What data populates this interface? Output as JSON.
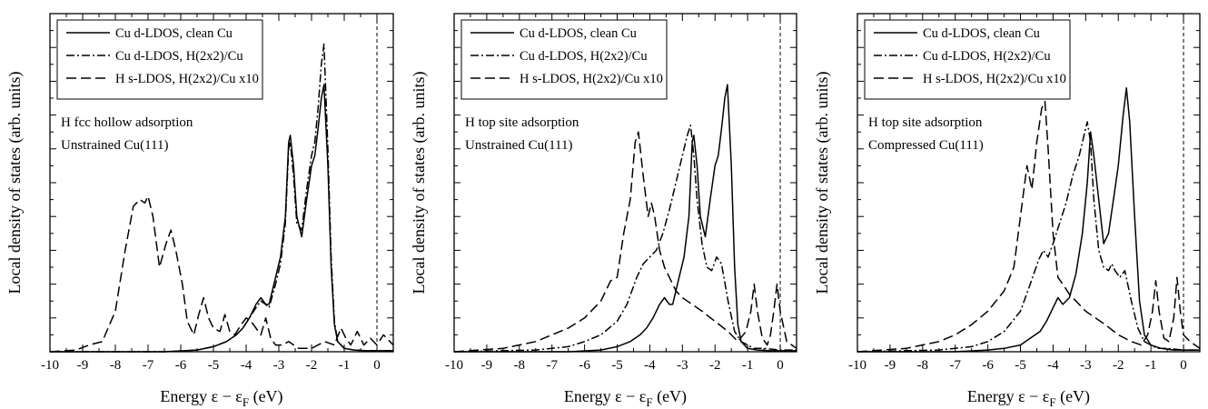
{
  "chart_data": [
    {
      "type": "line",
      "ylabel": "Local density of states (arb. units)",
      "xlabel_main": "Energy  ε − ε",
      "xlabel_sub": "F",
      "xlabel_unit": " (eV)",
      "xlim": [
        -10,
        0.5
      ],
      "ylim": [
        0,
        100
      ],
      "xticks": [
        "-10",
        "-9",
        "-8",
        "-7",
        "-6",
        "-5",
        "-4",
        "-3",
        "-2",
        "-1",
        "0"
      ],
      "fermi_level": 0,
      "annotations": [
        "H fcc hollow adsorption",
        "Unstrained Cu(111)"
      ],
      "series": [
        {
          "name": "Cu d-LDOS, clean Cu",
          "style": "solid",
          "x": [
            -10,
            -6.5,
            -5.5,
            -5,
            -4.6,
            -4.3,
            -4.1,
            -3.9,
            -3.7,
            -3.55,
            -3.4,
            -3.3,
            -3.1,
            -2.95,
            -2.8,
            -2.7,
            -2.65,
            -2.55,
            -2.45,
            -2.3,
            -2.15,
            -2.0,
            -1.9,
            -1.8,
            -1.7,
            -1.62,
            -1.5,
            -1.4,
            -1.3,
            -1.2,
            -1.0,
            -0.7,
            -0.3,
            0,
            0.5
          ],
          "y": [
            0,
            0,
            0.5,
            1.5,
            3,
            5,
            7,
            10,
            14,
            16,
            14,
            14,
            22,
            28,
            40,
            62,
            64,
            55,
            40,
            34,
            45,
            55,
            58,
            66,
            75,
            79,
            55,
            25,
            8,
            3,
            1,
            0.5,
            0.3,
            0.3,
            0.3
          ]
        },
        {
          "name": "Cu d-LDOS, H(2x2)/Cu",
          "style": "dashdot",
          "x": [
            -10,
            -6.5,
            -5.5,
            -5,
            -4.6,
            -4.3,
            -4.1,
            -3.9,
            -3.7,
            -3.55,
            -3.4,
            -3.3,
            -3.1,
            -2.95,
            -2.8,
            -2.7,
            -2.65,
            -2.55,
            -2.45,
            -2.3,
            -2.15,
            -2.0,
            -1.9,
            -1.8,
            -1.7,
            -1.62,
            -1.5,
            -1.4,
            -1.3,
            -1.2,
            -1.0,
            -0.7,
            -0.3,
            0,
            0.5
          ],
          "y": [
            0,
            0,
            0.5,
            1.5,
            3,
            5,
            7,
            10,
            13,
            15,
            14,
            13,
            20,
            26,
            38,
            60,
            62,
            52,
            38,
            36,
            48,
            58,
            62,
            72,
            85,
            91,
            60,
            28,
            9,
            3,
            1,
            0.5,
            0.3,
            0.3,
            0.3
          ]
        },
        {
          "name": "H s-LDOS, H(2x2)/Cu x10",
          "style": "dashed",
          "x": [
            -10,
            -9.2,
            -8.8,
            -8.4,
            -8.0,
            -7.7,
            -7.45,
            -7.25,
            -7.1,
            -7.0,
            -6.85,
            -6.65,
            -6.45,
            -6.3,
            -6.15,
            -5.95,
            -5.8,
            -5.6,
            -5.45,
            -5.3,
            -5.15,
            -5.0,
            -4.8,
            -4.65,
            -4.5,
            -4.35,
            -4.15,
            -4.0,
            -3.85,
            -3.7,
            -3.55,
            -3.4,
            -3.25,
            -3.1,
            -2.9,
            -2.7,
            -2.4,
            -2.0,
            -1.6,
            -1.3,
            -1.1,
            -0.95,
            -0.8,
            -0.6,
            -0.4,
            -0.2,
            0,
            0.2,
            0.5
          ],
          "y": [
            0,
            0.5,
            2,
            3,
            12,
            30,
            43,
            45,
            44,
            46,
            40,
            25,
            32,
            36,
            30,
            20,
            9,
            5,
            11,
            16,
            10,
            7,
            6,
            11,
            6,
            5,
            8,
            10,
            9,
            7,
            5,
            10,
            4,
            2,
            2,
            3,
            1,
            1,
            3,
            2,
            7,
            4,
            2,
            6,
            2,
            4,
            2,
            5,
            2
          ]
        }
      ]
    },
    {
      "type": "line",
      "ylabel": "Local density of states (arb. units)",
      "xlabel_main": "Energy  ε − ε",
      "xlabel_sub": "F",
      "xlabel_unit": " (eV)",
      "xlim": [
        -10,
        0.5
      ],
      "ylim": [
        0,
        100
      ],
      "xticks": [
        "-10",
        "-9",
        "-8",
        "-7",
        "-6",
        "-5",
        "-4",
        "-3",
        "-2",
        "-1",
        "0"
      ],
      "fermi_level": 0,
      "annotations": [
        "H top site adsorption",
        "Unstrained Cu(111)"
      ],
      "series": [
        {
          "name": "Cu d-LDOS, clean Cu",
          "style": "solid",
          "x": [
            -10,
            -6.5,
            -5.5,
            -5,
            -4.6,
            -4.3,
            -4.1,
            -3.9,
            -3.7,
            -3.55,
            -3.4,
            -3.3,
            -3.1,
            -2.95,
            -2.8,
            -2.7,
            -2.65,
            -2.55,
            -2.45,
            -2.3,
            -2.15,
            -2.0,
            -1.9,
            -1.8,
            -1.7,
            -1.62,
            -1.5,
            -1.4,
            -1.3,
            -1.2,
            -1.0,
            -0.7,
            -0.3,
            0,
            0.5
          ],
          "y": [
            0,
            0,
            0.5,
            1.5,
            3,
            5,
            7,
            10,
            14,
            16,
            14,
            14,
            22,
            28,
            40,
            62,
            64,
            55,
            40,
            34,
            45,
            55,
            58,
            66,
            75,
            79,
            55,
            25,
            8,
            3,
            1,
            0.5,
            0.3,
            0.3,
            0.3
          ]
        },
        {
          "name": "Cu d-LDOS, H(2x2)/Cu",
          "style": "dashdot",
          "x": [
            -10,
            -7.5,
            -6.5,
            -6.0,
            -5.5,
            -5.0,
            -4.7,
            -4.4,
            -4.2,
            -4.0,
            -3.8,
            -3.6,
            -3.4,
            -3.2,
            -3.0,
            -2.85,
            -2.75,
            -2.65,
            -2.55,
            -2.4,
            -2.25,
            -2.1,
            -1.95,
            -1.8,
            -1.6,
            -1.4,
            -1.2,
            -1.0,
            -0.8,
            -0.5,
            0,
            0.5
          ],
          "y": [
            0,
            0.5,
            1.5,
            3,
            5,
            9,
            14,
            22,
            26,
            28,
            30,
            35,
            42,
            50,
            58,
            64,
            67,
            58,
            45,
            32,
            25,
            24,
            28,
            26,
            15,
            6,
            3,
            2,
            1,
            1,
            0.5,
            0.5
          ]
        },
        {
          "name": "H s-LDOS, H(2x2)/Cu x10",
          "style": "dashed",
          "x": [
            -10,
            -8.5,
            -7.5,
            -7.0,
            -6.5,
            -6.0,
            -5.5,
            -5.2,
            -5.0,
            -4.8,
            -4.6,
            -4.45,
            -4.35,
            -4.2,
            -4.05,
            -3.95,
            -3.85,
            -3.7,
            -3.55,
            -3.4,
            -3.2,
            -3.0,
            -2.7,
            -2.4,
            -2.0,
            -1.6,
            -1.3,
            -1.05,
            -0.9,
            -0.8,
            -0.7,
            -0.55,
            -0.4,
            -0.3,
            -0.2,
            -0.1,
            0.0,
            0.2,
            0.5
          ],
          "y": [
            0,
            1,
            3,
            5,
            7,
            10,
            15,
            21,
            22,
            35,
            45,
            62,
            65,
            52,
            40,
            44,
            40,
            30,
            25,
            22,
            18,
            16,
            14,
            12,
            9,
            6,
            3,
            6,
            12,
            20,
            12,
            4,
            2,
            5,
            12,
            20,
            12,
            3,
            1
          ]
        }
      ]
    },
    {
      "type": "line",
      "ylabel": "Local density of states (arb. units)",
      "xlabel_main": "Energy  ε − ε",
      "xlabel_sub": "F",
      "xlabel_unit": " (eV)",
      "xlim": [
        -10,
        0.5
      ],
      "ylim": [
        0,
        100
      ],
      "xticks": [
        "-10",
        "-9",
        "-8",
        "-7",
        "-6",
        "-5",
        "-4",
        "-3",
        "-2",
        "-1",
        "0"
      ],
      "fermi_level": 0,
      "annotations": [
        "H top site adsorption",
        "Compressed Cu(111)"
      ],
      "series": [
        {
          "name": "Cu d-LDOS, clean Cu",
          "style": "solid",
          "x": [
            -10,
            -7.0,
            -6.0,
            -5.5,
            -5.0,
            -4.7,
            -4.4,
            -4.2,
            -4.0,
            -3.85,
            -3.7,
            -3.5,
            -3.3,
            -3.1,
            -2.95,
            -2.85,
            -2.75,
            -2.6,
            -2.45,
            -2.3,
            -2.15,
            -2.0,
            -1.85,
            -1.75,
            -1.65,
            -1.5,
            -1.35,
            -1.2,
            -1.0,
            -0.7,
            -0.3,
            0,
            0.5
          ],
          "y": [
            0,
            0,
            0.5,
            1,
            2,
            4,
            6,
            9,
            13,
            16,
            14,
            16,
            23,
            35,
            50,
            65,
            58,
            45,
            32,
            35,
            45,
            55,
            70,
            78,
            68,
            40,
            15,
            5,
            2,
            1,
            0.5,
            0.5,
            0.5
          ]
        },
        {
          "name": "Cu d-LDOS, H(2x2)/Cu",
          "style": "dashdot",
          "x": [
            -10,
            -7.5,
            -6.5,
            -6.0,
            -5.5,
            -5.0,
            -4.7,
            -4.45,
            -4.3,
            -4.15,
            -4.0,
            -3.8,
            -3.6,
            -3.4,
            -3.2,
            -3.05,
            -2.95,
            -2.85,
            -2.75,
            -2.6,
            -2.45,
            -2.3,
            -2.2,
            -2.1,
            -1.95,
            -1.8,
            -1.6,
            -1.4,
            -1.2,
            -1.0,
            -0.8,
            -0.5,
            0,
            0.5
          ],
          "y": [
            0,
            0.5,
            1.5,
            3,
            6,
            12,
            20,
            27,
            30,
            28,
            32,
            38,
            44,
            52,
            58,
            64,
            68,
            62,
            45,
            30,
            25,
            24,
            26,
            24,
            22,
            24,
            15,
            7,
            3,
            2,
            1,
            1,
            0.5,
            0.5
          ]
        },
        {
          "name": "H s-LDOS, H(2x2)/Cu x10",
          "style": "dashed",
          "x": [
            -10,
            -8.5,
            -7.5,
            -7.0,
            -6.5,
            -6.0,
            -5.5,
            -5.2,
            -5.0,
            -4.8,
            -4.65,
            -4.5,
            -4.35,
            -4.25,
            -4.15,
            -4.0,
            -3.85,
            -3.7,
            -3.5,
            -3.3,
            -3.0,
            -2.7,
            -2.4,
            -2.0,
            -1.6,
            -1.3,
            -1.1,
            -0.95,
            -0.85,
            -0.75,
            -0.6,
            -0.45,
            -0.3,
            -0.2,
            -0.1,
            0.0,
            0.2,
            0.5
          ],
          "y": [
            0,
            1,
            3,
            5,
            8,
            12,
            18,
            25,
            40,
            55,
            48,
            62,
            72,
            74,
            60,
            35,
            22,
            20,
            17,
            15,
            12,
            10,
            8,
            5,
            3,
            2,
            5,
            12,
            21,
            12,
            4,
            3,
            10,
            22,
            12,
            5,
            3,
            1
          ]
        }
      ]
    }
  ]
}
